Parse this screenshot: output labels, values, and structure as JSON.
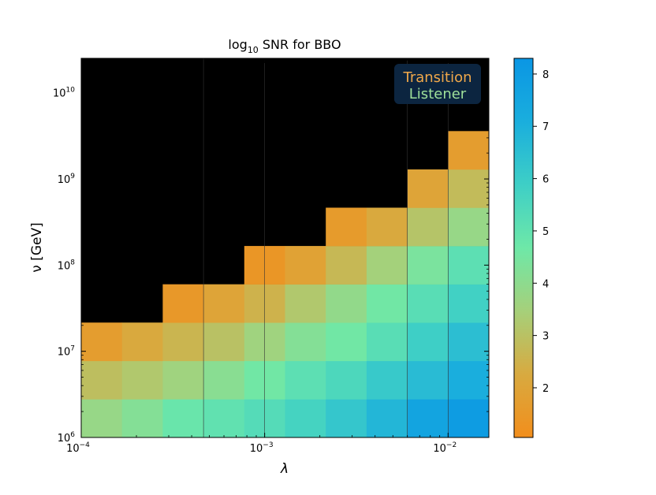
{
  "chart_data": {
    "type": "heatmap",
    "title": {
      "main": "log",
      "sub": "10",
      "rest": " SNR for BBO"
    },
    "xlabel": "λ",
    "ylabel": "ν [GeV]",
    "x_scale": "log",
    "y_scale": "log",
    "x_edges_log10": [
      -4.0,
      -3.7778,
      -3.5556,
      -3.3333,
      -3.1111,
      -2.8889,
      -2.6667,
      -2.4444,
      -2.2222,
      -2.0,
      -1.7778
    ],
    "y_edges_log10": [
      6.0,
      6.4444,
      6.8889,
      7.3333,
      7.7778,
      8.2222,
      8.6667,
      9.1111,
      9.5556
    ],
    "xlim_log10": [
      -4.0,
      -1.7778
    ],
    "ylim_log10": [
      6.0,
      10.4
    ],
    "x_ticks": [
      {
        "base": "10",
        "exp": "−4",
        "v": -4
      },
      {
        "base": "10",
        "exp": "−3",
        "v": -3
      },
      {
        "base": "10",
        "exp": "−2",
        "v": -2
      }
    ],
    "y_ticks": [
      {
        "base": "10",
        "exp": "6",
        "v": 6
      },
      {
        "base": "10",
        "exp": "7",
        "v": 7
      },
      {
        "base": "10",
        "exp": "8",
        "v": 8
      },
      {
        "base": "10",
        "exp": "9",
        "v": 9
      },
      {
        "base": "10",
        "exp": "10",
        "v": 10
      }
    ],
    "values": [
      [
        3.8,
        4.2,
        4.8,
        5.0,
        5.3,
        5.7,
        6.2,
        6.8,
        7.6,
        8.0
      ],
      [
        2.9,
        3.2,
        3.6,
        4.1,
        4.6,
        5.1,
        5.5,
        6.1,
        6.6,
        7.1
      ],
      [
        1.7,
        2.2,
        2.6,
        3.0,
        3.6,
        4.2,
        4.6,
        5.2,
        5.9,
        6.5
      ],
      [
        null,
        null,
        1.5,
        2.0,
        2.5,
        3.2,
        3.9,
        4.6,
        5.2,
        5.8
      ],
      [
        null,
        null,
        null,
        null,
        1.4,
        1.9,
        2.7,
        3.5,
        4.4,
        5.1
      ],
      [
        null,
        null,
        null,
        null,
        null,
        null,
        1.6,
        2.2,
        3.1,
        3.8
      ],
      [
        null,
        null,
        null,
        null,
        null,
        null,
        null,
        null,
        2.0,
        2.8
      ],
      [
        null,
        null,
        null,
        null,
        null,
        null,
        null,
        null,
        null,
        1.7
      ]
    ],
    "empty_color": "#000000",
    "colorbar": {
      "range": [
        1.05,
        8.3
      ],
      "ticks": [
        2,
        3,
        4,
        5,
        6,
        7,
        8
      ],
      "colors": [
        "#f28e1c",
        "#d8aa40",
        "#a6d07a",
        "#6ee8a8",
        "#3ecfc6",
        "#1aaedd",
        "#0a96e4"
      ]
    },
    "grid": "vertical lines at decade ticks"
  },
  "logo": {
    "line1": "Transition",
    "line2": "Listener",
    "bg": "#0c2540",
    "color1": "#f0a84a",
    "color2": "#9fe09a"
  }
}
